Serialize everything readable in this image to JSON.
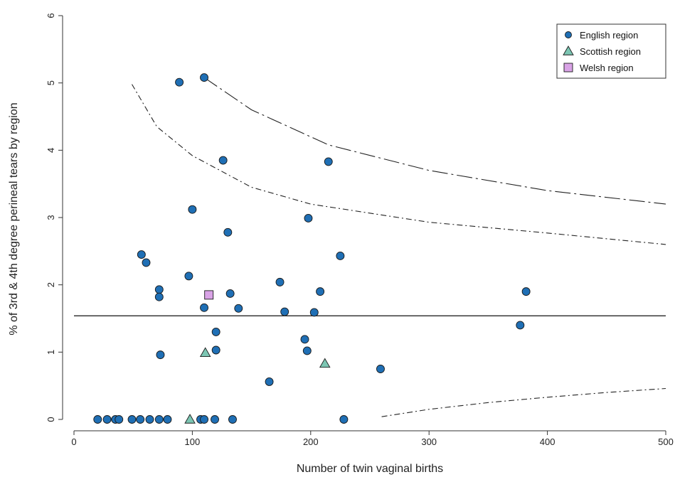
{
  "chart_data": {
    "type": "scatter",
    "xlabel": "Number of twin vaginal births",
    "ylabel": "% of 3rd & 4th degree perineal tears by  region",
    "xlim": [
      0,
      500
    ],
    "ylim": [
      0,
      6
    ],
    "x_ticks": [
      0,
      100,
      200,
      300,
      400,
      500
    ],
    "y_ticks": [
      0,
      1,
      2,
      3,
      4,
      5,
      6
    ],
    "grid": false,
    "legend_position": "top-right",
    "reference_line": {
      "y": 1.54,
      "x_from": 0,
      "x_to": 500
    },
    "series": [
      {
        "name": "English region",
        "marker": "circle",
        "color": "#1f6fb5",
        "points": [
          {
            "x": 20,
            "y": 0
          },
          {
            "x": 28,
            "y": 0
          },
          {
            "x": 35,
            "y": 0
          },
          {
            "x": 38,
            "y": 0
          },
          {
            "x": 49,
            "y": 0
          },
          {
            "x": 56,
            "y": 0
          },
          {
            "x": 64,
            "y": 0
          },
          {
            "x": 72,
            "y": 0
          },
          {
            "x": 79,
            "y": 0
          },
          {
            "x": 107,
            "y": 0
          },
          {
            "x": 110,
            "y": 0
          },
          {
            "x": 119,
            "y": 0
          },
          {
            "x": 134,
            "y": 0
          },
          {
            "x": 228,
            "y": 0
          },
          {
            "x": 89,
            "y": 5.01
          },
          {
            "x": 110,
            "y": 5.08
          },
          {
            "x": 126,
            "y": 3.85
          },
          {
            "x": 215,
            "y": 3.83
          },
          {
            "x": 100,
            "y": 3.12
          },
          {
            "x": 198,
            "y": 2.99
          },
          {
            "x": 130,
            "y": 2.78
          },
          {
            "x": 57,
            "y": 2.45
          },
          {
            "x": 61,
            "y": 2.33
          },
          {
            "x": 225,
            "y": 2.43
          },
          {
            "x": 97,
            "y": 2.13
          },
          {
            "x": 174,
            "y": 2.04
          },
          {
            "x": 72,
            "y": 1.93
          },
          {
            "x": 72,
            "y": 1.82
          },
          {
            "x": 132,
            "y": 1.87
          },
          {
            "x": 208,
            "y": 1.9
          },
          {
            "x": 110,
            "y": 1.66
          },
          {
            "x": 139,
            "y": 1.65
          },
          {
            "x": 178,
            "y": 1.6
          },
          {
            "x": 203,
            "y": 1.59
          },
          {
            "x": 120,
            "y": 1.3
          },
          {
            "x": 195,
            "y": 1.19
          },
          {
            "x": 120,
            "y": 1.03
          },
          {
            "x": 197,
            "y": 1.02
          },
          {
            "x": 73,
            "y": 0.96
          },
          {
            "x": 165,
            "y": 0.56
          },
          {
            "x": 259,
            "y": 0.75
          },
          {
            "x": 377,
            "y": 1.4
          },
          {
            "x": 382,
            "y": 1.9
          }
        ]
      },
      {
        "name": "Scottish region",
        "marker": "triangle",
        "color": "#7cc6b3",
        "points": [
          {
            "x": 111,
            "y": 0.99
          },
          {
            "x": 212,
            "y": 0.83
          },
          {
            "x": 98,
            "y": 0
          }
        ]
      },
      {
        "name": "Welsh region",
        "marker": "square",
        "color": "#d9a3e6",
        "points": [
          {
            "x": 114,
            "y": 1.85
          }
        ]
      }
    ],
    "funnel_lines": [
      {
        "style": "long-dash-dot",
        "points": [
          [
            110,
            5.08
          ],
          [
            150,
            4.6
          ],
          [
            215,
            4.08
          ],
          [
            300,
            3.7
          ],
          [
            400,
            3.4
          ],
          [
            500,
            3.2
          ]
        ]
      },
      {
        "style": "dash-dot",
        "points": [
          [
            49,
            4.98
          ],
          [
            70,
            4.35
          ],
          [
            100,
            3.92
          ],
          [
            150,
            3.45
          ],
          [
            200,
            3.2
          ],
          [
            300,
            2.93
          ],
          [
            400,
            2.77
          ],
          [
            500,
            2.6
          ]
        ]
      },
      {
        "style": "dash-dot",
        "points": [
          [
            260,
            0.04
          ],
          [
            300,
            0.15
          ],
          [
            350,
            0.25
          ],
          [
            400,
            0.33
          ],
          [
            450,
            0.4
          ],
          [
            500,
            0.46
          ]
        ]
      }
    ]
  }
}
